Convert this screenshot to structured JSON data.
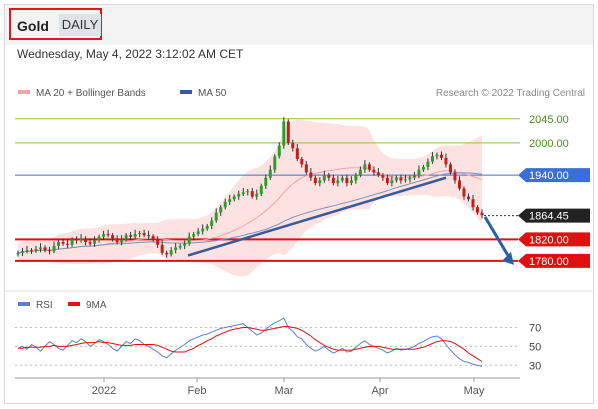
{
  "header": {
    "symbol": "Gold",
    "period": "DAILY"
  },
  "datetime": "Wednesday, May 4, 2022 3:12:02 AM CET",
  "legend": {
    "items": [
      {
        "label": "MA 20 + Bollinger Bands",
        "color": "#f4a3a3"
      },
      {
        "label": "MA 50",
        "color": "#3a5a9a"
      }
    ],
    "credit": "Research © 2022 Trading Central"
  },
  "rsi_legend": {
    "items": [
      {
        "label": "RSI",
        "color": "#5b7fd6"
      },
      {
        "label": "9MA",
        "color": "#e01010"
      }
    ]
  },
  "chart_data": [
    {
      "type": "candlestick",
      "ylim": [
        1735,
        2080
      ],
      "levels": [
        {
          "value": 2045.0,
          "label": "2045.00",
          "kind": "target",
          "color": "#8cbf4a"
        },
        {
          "value": 2000.0,
          "label": "2000.00",
          "kind": "target",
          "color": "#8cbf4a"
        },
        {
          "value": 1940.0,
          "label": "1940.00",
          "kind": "pivot",
          "color": "#3a6fd8"
        },
        {
          "value": 1864.45,
          "label": "1864.45",
          "kind": "last",
          "color": "#222222"
        },
        {
          "value": 1820.0,
          "label": "1820.00",
          "kind": "support",
          "color": "#e01010"
        },
        {
          "value": 1780.0,
          "label": "1780.00",
          "kind": "support",
          "color": "#e01010"
        }
      ],
      "x_ticks": [
        "2022",
        "Feb",
        "Mar",
        "Apr",
        "May"
      ],
      "trendline": [
        {
          "date": "2022-01-28",
          "price": 1790
        },
        {
          "date": "2022-04-20",
          "price": 1935
        }
      ],
      "forecast_arrow": {
        "from": 1862,
        "to": 1780
      },
      "close_approx": [
        1795,
        1798,
        1800,
        1799,
        1802,
        1805,
        1800,
        1798,
        1808,
        1815,
        1812,
        1810,
        1820,
        1818,
        1822,
        1815,
        1812,
        1818,
        1825,
        1830,
        1828,
        1822,
        1815,
        1820,
        1828,
        1825,
        1830,
        1832,
        1828,
        1826,
        1820,
        1810,
        1795,
        1792,
        1800,
        1805,
        1808,
        1812,
        1825,
        1830,
        1835,
        1840,
        1845,
        1855,
        1870,
        1880,
        1890,
        1895,
        1900,
        1905,
        1908,
        1910,
        1900,
        1905,
        1920,
        1935,
        1950,
        1975,
        1995,
        2040,
        2000,
        1990,
        1970,
        1960,
        1945,
        1935,
        1925,
        1930,
        1940,
        1935,
        1925,
        1930,
        1935,
        1925,
        1930,
        1940,
        1950,
        1960,
        1950,
        1945,
        1940,
        1935,
        1925,
        1930,
        1935,
        1930,
        1932,
        1935,
        1940,
        1950,
        1955,
        1965,
        1975,
        1978,
        1972,
        1960,
        1945,
        1930,
        1915,
        1900,
        1895,
        1880,
        1870,
        1865
      ]
    },
    {
      "type": "line",
      "title": "RSI",
      "y_ticks": [
        70,
        50,
        30
      ],
      "ylim": [
        25,
        80
      ],
      "series": [
        {
          "name": "RSI",
          "values": [
            48,
            50,
            47,
            52,
            49,
            45,
            50,
            55,
            52,
            48,
            46,
            51,
            56,
            54,
            58,
            55,
            50,
            53,
            57,
            55,
            52,
            48,
            45,
            50,
            55,
            53,
            58,
            56,
            52,
            50,
            47,
            44,
            40,
            38,
            42,
            46,
            49,
            52,
            56,
            58,
            60,
            62,
            63,
            65,
            67,
            69,
            70,
            71,
            72,
            73,
            74,
            70,
            66,
            62,
            64,
            68,
            72,
            75,
            77,
            80,
            70,
            66,
            60,
            58,
            52,
            48,
            45,
            47,
            50,
            46,
            43,
            45,
            48,
            44,
            45,
            49,
            53,
            56,
            52,
            50,
            48,
            46,
            43,
            45,
            48,
            46,
            47,
            48,
            50,
            53,
            55,
            58,
            60,
            61,
            58,
            52,
            46,
            41,
            37,
            34,
            33,
            31,
            30,
            29
          ]
        },
        {
          "name": "9MA",
          "values": [
            48,
            48,
            49,
            49,
            49,
            49,
            50,
            50,
            51,
            50,
            50,
            50,
            51,
            52,
            53,
            54,
            54,
            54,
            55,
            54,
            54,
            53,
            52,
            51,
            51,
            51,
            52,
            52,
            52,
            52,
            52,
            51,
            49,
            47,
            45,
            44,
            44,
            44,
            46,
            48,
            51,
            53,
            56,
            58,
            61,
            63,
            65,
            67,
            68,
            69,
            70,
            70,
            69,
            68,
            67,
            67,
            68,
            69,
            70,
            71,
            71,
            70,
            69,
            67,
            64,
            61,
            57,
            54,
            51,
            49,
            47,
            46,
            46,
            46,
            46,
            47,
            48,
            49,
            50,
            50,
            50,
            49,
            48,
            47,
            47,
            47,
            47,
            47,
            47,
            48,
            49,
            51,
            53,
            55,
            56,
            56,
            55,
            53,
            50,
            47,
            43,
            40,
            37,
            34
          ]
        }
      ],
      "x_ticks": [
        "2022",
        "Feb",
        "Mar",
        "Apr",
        "May"
      ]
    }
  ]
}
